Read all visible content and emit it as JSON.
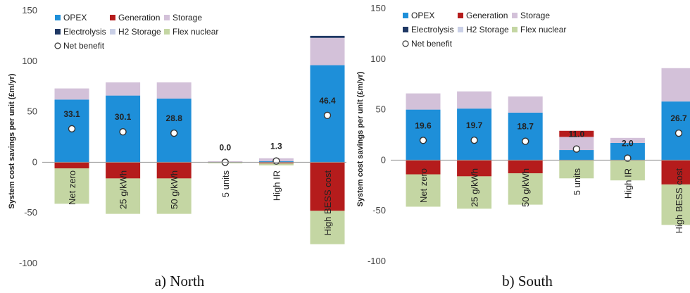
{
  "colors": {
    "OPEX": "#1e8fd9",
    "Generation": "#b51c1c",
    "Storage": "#d3c1d9",
    "Electrolysis": "#1f3864",
    "H2 Storage": "#c9cfe6",
    "Flex nuclear": "#c4d6a3",
    "Net benefit": "#ffffff"
  },
  "chart_data": [
    {
      "type": "bar",
      "stacked": true,
      "caption": "a) North",
      "ylabel": "System cost savings per unit (£m/yr)",
      "ylim": [
        -100,
        150
      ],
      "yticks": [
        -100,
        -50,
        0,
        50,
        100,
        150
      ],
      "grid": false,
      "legend": {
        "placement": "top-left",
        "entries": [
          "OPEX",
          "Generation",
          "Storage",
          "Electrolysis",
          "H2 Storage",
          "Flex nuclear",
          "Net benefit"
        ]
      },
      "categories": [
        "Net zero",
        "25 g/kWh",
        "50 g/kWh",
        "5 units",
        "High IR",
        "High BESS cost"
      ],
      "series": [
        {
          "name": "OPEX",
          "values": [
            62,
            66,
            63,
            0,
            1,
            96
          ]
        },
        {
          "name": "Storage",
          "values": [
            11,
            13,
            16,
            1,
            3,
            27
          ]
        },
        {
          "name": "H2 Storage",
          "values": [
            0,
            0,
            0,
            0,
            0,
            0
          ]
        },
        {
          "name": "Electrolysis",
          "values": [
            0,
            0,
            0,
            0,
            0,
            2
          ]
        },
        {
          "name": "Generation",
          "values": [
            -6,
            -16,
            -16,
            0,
            -1,
            -48
          ]
        },
        {
          "name": "Flex nuclear",
          "values": [
            -35,
            -35,
            -35,
            -1,
            -2,
            -33
          ]
        }
      ],
      "net_benefit": {
        "name": "Net benefit",
        "values": [
          33.1,
          30.1,
          28.8,
          0.0,
          1.3,
          46.4
        ],
        "labels": [
          "33.1",
          "30.1",
          "28.8",
          "0.0",
          "1.3",
          "46.4"
        ]
      }
    },
    {
      "type": "bar",
      "stacked": true,
      "caption": "b) South",
      "ylabel": "System cost savings per unit (£m/yr)",
      "ylim": [
        -100,
        150
      ],
      "yticks": [
        -100,
        -50,
        0,
        50,
        100,
        150
      ],
      "grid": false,
      "legend": {
        "placement": "top-left",
        "entries": [
          "OPEX",
          "Generation",
          "Storage",
          "Electrolysis",
          "H2 Storage",
          "Flex nuclear",
          "Net benefit"
        ]
      },
      "categories": [
        "Net zero",
        "25 g/kWh",
        "50 g/kWh",
        "5 units",
        "High IR",
        "High BESS cost"
      ],
      "series": [
        {
          "name": "OPEX",
          "values": [
            50,
            51,
            47,
            10,
            17,
            58
          ]
        },
        {
          "name": "Storage",
          "values": [
            16,
            17,
            16,
            13,
            5,
            33
          ]
        },
        {
          "name": "H2 Storage",
          "values": [
            0,
            0,
            0,
            0,
            0,
            0
          ]
        },
        {
          "name": "Electrolysis",
          "values": [
            0,
            0,
            0,
            0,
            0,
            0
          ]
        },
        {
          "name": "Generation",
          "values": [
            -14,
            -16,
            -13,
            6,
            0,
            -24
          ]
        },
        {
          "name": "Flex nuclear",
          "values": [
            -32,
            -32,
            -31,
            -18,
            -20,
            -40
          ]
        }
      ],
      "net_benefit": {
        "name": "Net benefit",
        "values": [
          19.6,
          19.7,
          18.7,
          11.0,
          2.0,
          26.7
        ],
        "labels": [
          "19.6",
          "19.7",
          "18.7",
          "11.0",
          "2.0",
          "26.7"
        ]
      }
    }
  ]
}
